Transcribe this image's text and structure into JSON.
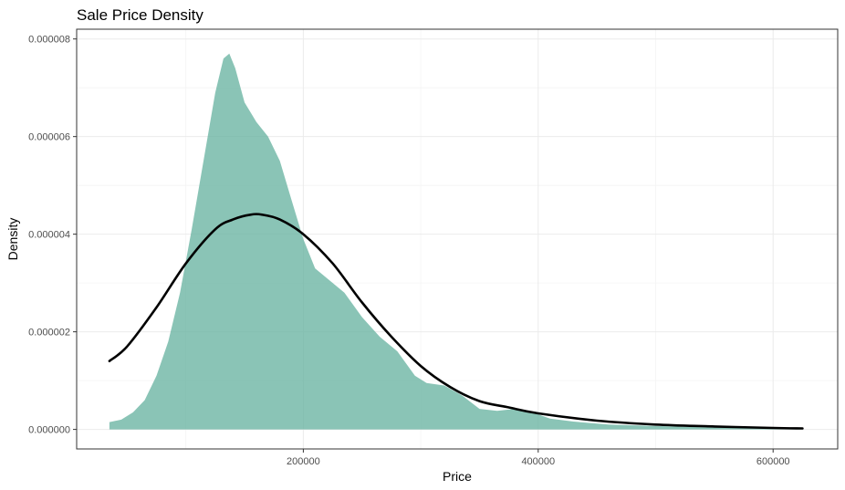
{
  "chart_data": {
    "type": "area",
    "title": "Sale Price Density",
    "xlabel": "Price",
    "ylabel": "Density",
    "xlim": [
      7000,
      655000
    ],
    "ylim": [
      -4e-07,
      8.2e-06
    ],
    "x_ticks": [
      200000,
      400000,
      600000
    ],
    "x_tick_labels": [
      "200000",
      "400000",
      "600000"
    ],
    "y_ticks": [
      0,
      2e-06,
      4e-06,
      6e-06,
      8e-06
    ],
    "y_tick_labels": [
      "0.000000",
      "0.000002",
      "0.000004",
      "0.000006",
      "0.000008"
    ],
    "grid": true,
    "legend": "none",
    "series": [
      {
        "kind": "area",
        "color": "#69b3a2",
        "points": [
          [
            34900,
            1.5e-07
          ],
          [
            45000,
            2e-07
          ],
          [
            55000,
            3.5e-07
          ],
          [
            65000,
            6e-07
          ],
          [
            75000,
            1.1e-06
          ],
          [
            85000,
            1.8e-06
          ],
          [
            95000,
            2.8e-06
          ],
          [
            105000,
            4.1e-06
          ],
          [
            115000,
            5.5e-06
          ],
          [
            125000,
            6.9e-06
          ],
          [
            132000,
            7.6e-06
          ],
          [
            137000,
            7.7e-06
          ],
          [
            142000,
            7.4e-06
          ],
          [
            150000,
            6.7e-06
          ],
          [
            160000,
            6.3e-06
          ],
          [
            170000,
            6e-06
          ],
          [
            180000,
            5.5e-06
          ],
          [
            190000,
            4.7e-06
          ],
          [
            200000,
            3.9e-06
          ],
          [
            210000,
            3.3e-06
          ],
          [
            220000,
            3.1e-06
          ],
          [
            235000,
            2.8e-06
          ],
          [
            250000,
            2.3e-06
          ],
          [
            265000,
            1.9e-06
          ],
          [
            280000,
            1.6e-06
          ],
          [
            295000,
            1.1e-06
          ],
          [
            305000,
            9.5e-07
          ],
          [
            320000,
            9e-07
          ],
          [
            335000,
            7e-07
          ],
          [
            350000,
            4.2e-07
          ],
          [
            365000,
            3.8e-07
          ],
          [
            380000,
            4.2e-07
          ],
          [
            395000,
            3.5e-07
          ],
          [
            410000,
            2.2e-07
          ],
          [
            430000,
            1.6e-07
          ],
          [
            460000,
            1e-07
          ],
          [
            500000,
            7e-08
          ],
          [
            550000,
            4e-08
          ],
          [
            600000,
            2e-08
          ],
          [
            625000,
            2e-08
          ]
        ]
      },
      {
        "kind": "line",
        "name": "",
        "color": "#000000",
        "points": [
          [
            34900,
            1.4e-06
          ],
          [
            50000,
            1.7e-06
          ],
          [
            75000,
            2.5e-06
          ],
          [
            100000,
            3.4e-06
          ],
          [
            125000,
            4.1e-06
          ],
          [
            140000,
            4.3e-06
          ],
          [
            155000,
            4.4e-06
          ],
          [
            165000,
            4.4e-06
          ],
          [
            180000,
            4.3e-06
          ],
          [
            200000,
            4e-06
          ],
          [
            225000,
            3.4e-06
          ],
          [
            250000,
            2.6e-06
          ],
          [
            275000,
            1.9e-06
          ],
          [
            300000,
            1.3e-06
          ],
          [
            325000,
            8.7e-07
          ],
          [
            350000,
            5.8e-07
          ],
          [
            375000,
            4.5e-07
          ],
          [
            400000,
            3.3e-07
          ],
          [
            450000,
            1.8e-07
          ],
          [
            500000,
            1e-07
          ],
          [
            550000,
            6e-08
          ],
          [
            600000,
            3e-08
          ],
          [
            625000,
            2e-08
          ]
        ]
      }
    ]
  }
}
